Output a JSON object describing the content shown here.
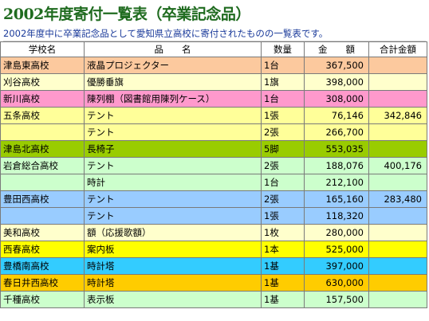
{
  "title": "2002年度寄付一覧表（卒業記念品）",
  "subtitle": "2002年度中に卒業記念品として愛知県立高校に寄付されたものの一覧表です。",
  "headers": [
    "学校名",
    "品　　名",
    "数量",
    "金　　額",
    "合計金額"
  ],
  "rows": [
    {
      "school": "津島東高校",
      "item": "液晶プロジェクター",
      "qty": "1台",
      "amount": "367,500",
      "total": "",
      "color": "#fcc99e"
    },
    {
      "school": "刈谷高校",
      "item": "優勝垂旗",
      "qty": "1旗",
      "amount": "398,000",
      "total": "",
      "color": "#ffffcc"
    },
    {
      "school": "新川高校",
      "item": "陳列棚（図書館用陳列ケース）",
      "qty": "1台",
      "amount": "308,000",
      "total": "",
      "color": "#ff99cc"
    },
    {
      "school": "五条高校",
      "item": "テント",
      "qty": "1張",
      "amount": "76,146",
      "total": "342,846",
      "color": "#ffff99"
    },
    {
      "school": "",
      "item": "テント",
      "qty": "2張",
      "amount": "266,700",
      "total": "",
      "color": "#ffff99"
    },
    {
      "school": "津島北高校",
      "item": "長椅子",
      "qty": "5脚",
      "amount": "553,035",
      "total": "",
      "color": "#99cc00"
    },
    {
      "school": "岩倉総合高校",
      "item": "テント",
      "qty": "2張",
      "amount": "188,076",
      "total": "400,176",
      "color": "#ccffcc"
    },
    {
      "school": "",
      "item": "時計",
      "qty": "1台",
      "amount": "212,100",
      "total": "",
      "color": "#ccffcc"
    },
    {
      "school": "豊田西高校",
      "item": "テント",
      "qty": "2張",
      "amount": "165,160",
      "total": "283,480",
      "color": "#99ccff"
    },
    {
      "school": "",
      "item": "テント",
      "qty": "1張",
      "amount": "118,320",
      "total": "",
      "color": "#99ccff"
    },
    {
      "school": "美和高校",
      "item": "額（応援歌額）",
      "qty": "1枚",
      "amount": "280,000",
      "total": "",
      "color": "#ffffcc"
    },
    {
      "school": "西春高校",
      "item": "案内板",
      "qty": "1本",
      "amount": "525,000",
      "total": "",
      "color": "#ffff00"
    },
    {
      "school": "豊橋南高校",
      "item": "時計塔",
      "qty": "1基",
      "amount": "397,000",
      "total": "",
      "color": "#33ccff"
    },
    {
      "school": "春日井西高校",
      "item": "時計塔",
      "qty": "1基",
      "amount": "630,000",
      "total": "",
      "color": "#ffcc00"
    },
    {
      "school": "千種高校",
      "item": "表示板",
      "qty": "1基",
      "amount": "157,500",
      "total": "",
      "color": "#ccffcc"
    }
  ]
}
